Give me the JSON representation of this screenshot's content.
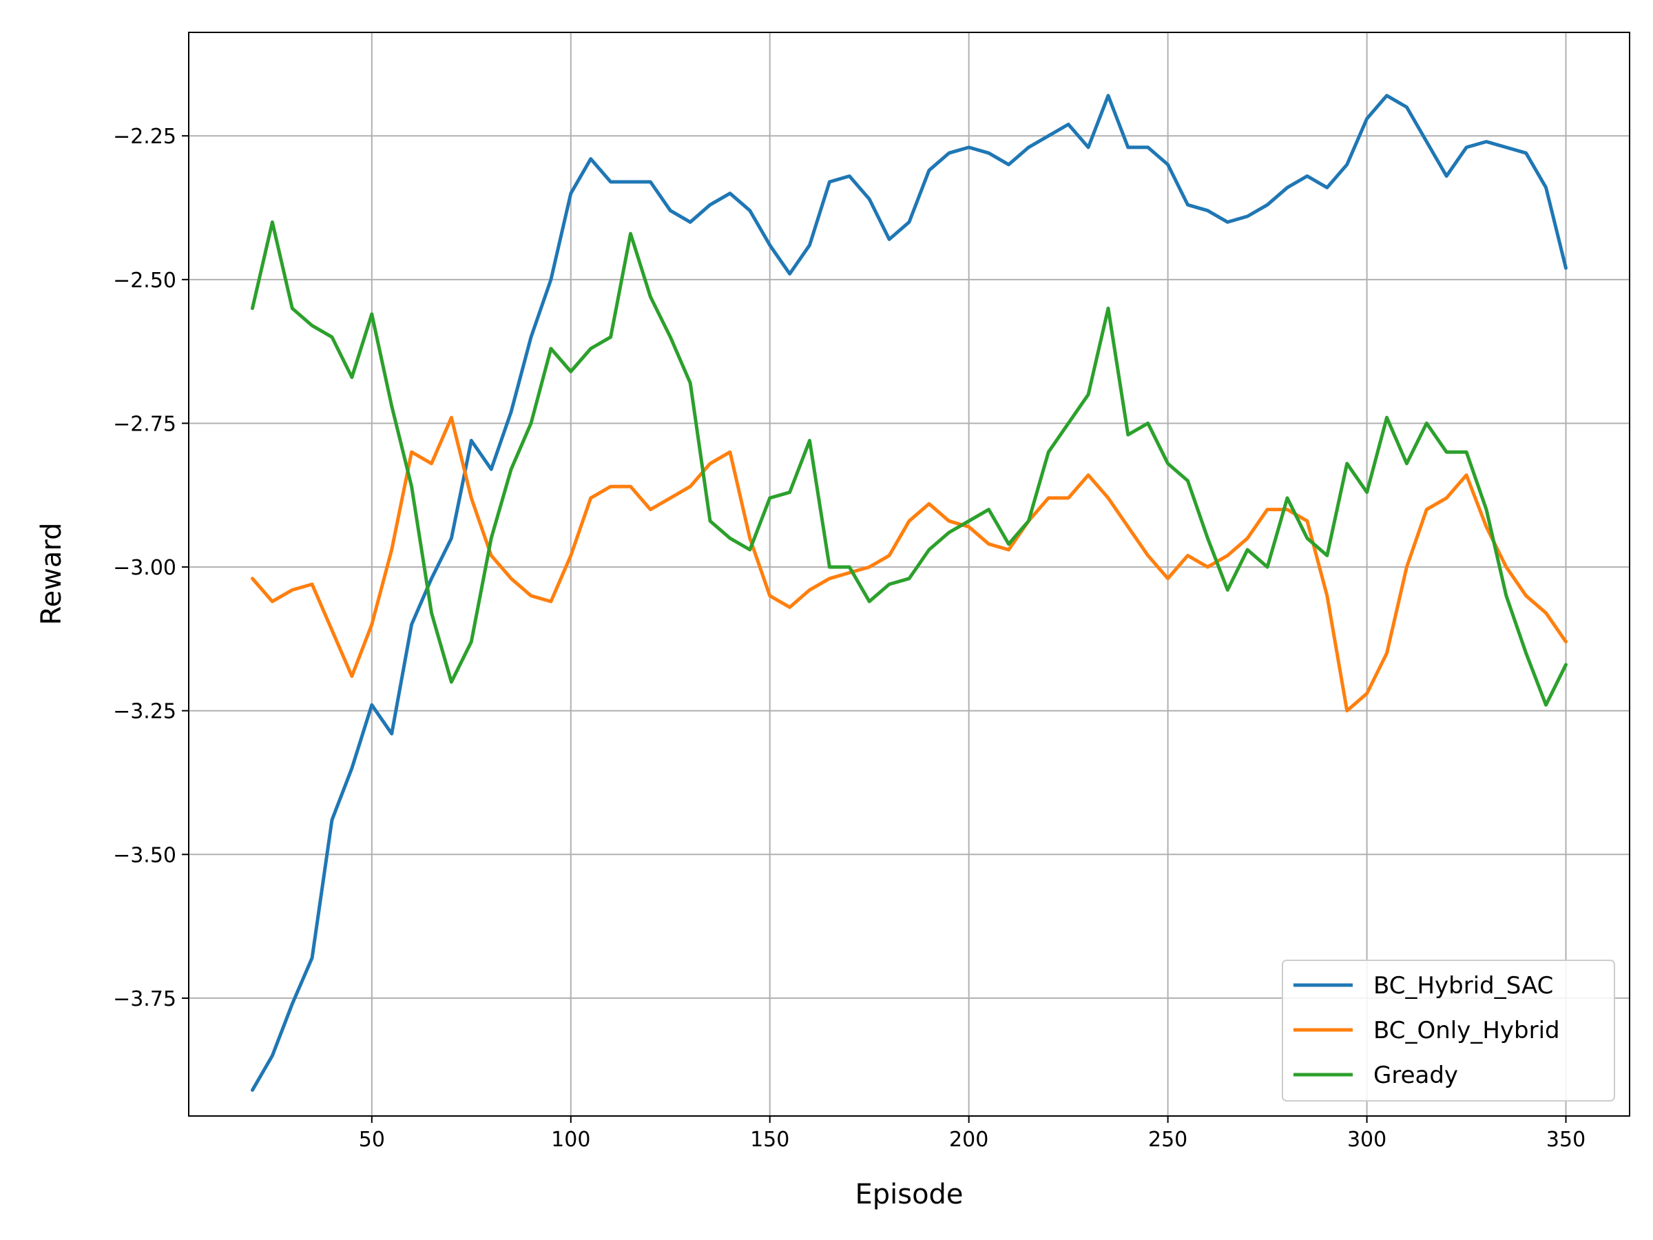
{
  "chart_data": {
    "type": "line",
    "title": "",
    "xlabel": "Episode",
    "ylabel": "Reward",
    "xlim": [
      4,
      366
    ],
    "ylim": [
      -3.955,
      -2.07
    ],
    "xticks": [
      50,
      100,
      150,
      200,
      250,
      300,
      350
    ],
    "xtick_labels": [
      "50",
      "100",
      "150",
      "200",
      "250",
      "300",
      "350"
    ],
    "yticks": [
      -3.75,
      -3.5,
      -3.25,
      -3.0,
      -2.75,
      -2.5,
      -2.25
    ],
    "ytick_labels": [
      "−3.75",
      "−3.50",
      "−3.25",
      "−3.00",
      "−2.75",
      "−2.50",
      "−2.25"
    ],
    "grid": true,
    "legend_position": "lower-right",
    "x": [
      20,
      25,
      30,
      35,
      40,
      45,
      50,
      55,
      60,
      65,
      70,
      75,
      80,
      85,
      90,
      95,
      100,
      105,
      110,
      115,
      120,
      125,
      130,
      135,
      140,
      145,
      150,
      155,
      160,
      165,
      170,
      175,
      180,
      185,
      190,
      195,
      200,
      205,
      210,
      215,
      220,
      225,
      230,
      235,
      240,
      245,
      250,
      255,
      260,
      265,
      270,
      275,
      280,
      285,
      290,
      295,
      300,
      305,
      310,
      315,
      320,
      325,
      330,
      335,
      340,
      345,
      350
    ],
    "series": [
      {
        "name": "BC_Hybrid_SAC",
        "color": "#1f77b4",
        "values": [
          -3.91,
          -3.85,
          -3.76,
          -3.68,
          -3.44,
          -3.35,
          -3.24,
          -3.29,
          -3.1,
          -3.02,
          -2.95,
          -2.78,
          -2.83,
          -2.73,
          -2.6,
          -2.5,
          -2.35,
          -2.29,
          -2.33,
          -2.33,
          -2.33,
          -2.38,
          -2.4,
          -2.37,
          -2.35,
          -2.38,
          -2.44,
          -2.49,
          -2.44,
          -2.33,
          -2.32,
          -2.36,
          -2.43,
          -2.4,
          -2.31,
          -2.28,
          -2.27,
          -2.28,
          -2.3,
          -2.27,
          -2.25,
          -2.23,
          -2.27,
          -2.18,
          -2.27,
          -2.27,
          -2.3,
          -2.37,
          -2.38,
          -2.4,
          -2.39,
          -2.37,
          -2.34,
          -2.32,
          -2.34,
          -2.3,
          -2.22,
          -2.18,
          -2.2,
          -2.26,
          -2.32,
          -2.27,
          -2.26,
          -2.27,
          -2.28,
          -2.34,
          -2.48
        ]
      },
      {
        "name": "BC_Only_Hybrid",
        "color": "#ff7f0e",
        "values": [
          -3.02,
          -3.06,
          -3.04,
          -3.03,
          -3.11,
          -3.19,
          -3.1,
          -2.97,
          -2.8,
          -2.82,
          -2.74,
          -2.88,
          -2.98,
          -3.02,
          -3.05,
          -3.06,
          -2.98,
          -2.88,
          -2.86,
          -2.86,
          -2.9,
          -2.88,
          -2.86,
          -2.82,
          -2.8,
          -2.95,
          -3.05,
          -3.07,
          -3.04,
          -3.02,
          -3.01,
          -3.0,
          -2.98,
          -2.92,
          -2.89,
          -2.92,
          -2.93,
          -2.96,
          -2.97,
          -2.92,
          -2.88,
          -2.88,
          -2.84,
          -2.88,
          -2.93,
          -2.98,
          -3.02,
          -2.98,
          -3.0,
          -2.98,
          -2.95,
          -2.9,
          -2.9,
          -2.92,
          -3.05,
          -3.25,
          -3.22,
          -3.15,
          -3.0,
          -2.9,
          -2.88,
          -2.84,
          -2.93,
          -3.0,
          -3.05,
          -3.08,
          -3.13
        ]
      },
      {
        "name": "Gready",
        "color": "#2ca02c",
        "values": [
          -2.55,
          -2.4,
          -2.55,
          -2.58,
          -2.6,
          -2.67,
          -2.56,
          -2.72,
          -2.86,
          -3.08,
          -3.2,
          -3.13,
          -2.95,
          -2.83,
          -2.75,
          -2.62,
          -2.66,
          -2.62,
          -2.6,
          -2.42,
          -2.53,
          -2.6,
          -2.68,
          -2.92,
          -2.95,
          -2.97,
          -2.88,
          -2.87,
          -2.78,
          -3.0,
          -3.0,
          -3.06,
          -3.03,
          -3.02,
          -2.97,
          -2.94,
          -2.92,
          -2.9,
          -2.96,
          -2.92,
          -2.8,
          -2.75,
          -2.7,
          -2.55,
          -2.77,
          -2.75,
          -2.82,
          -2.85,
          -2.95,
          -3.04,
          -2.97,
          -3.0,
          -2.88,
          -2.95,
          -2.98,
          -2.82,
          -2.87,
          -2.74,
          -2.82,
          -2.75,
          -2.8,
          -2.8,
          -2.9,
          -3.05,
          -3.15,
          -3.24,
          -3.17
        ]
      }
    ]
  }
}
